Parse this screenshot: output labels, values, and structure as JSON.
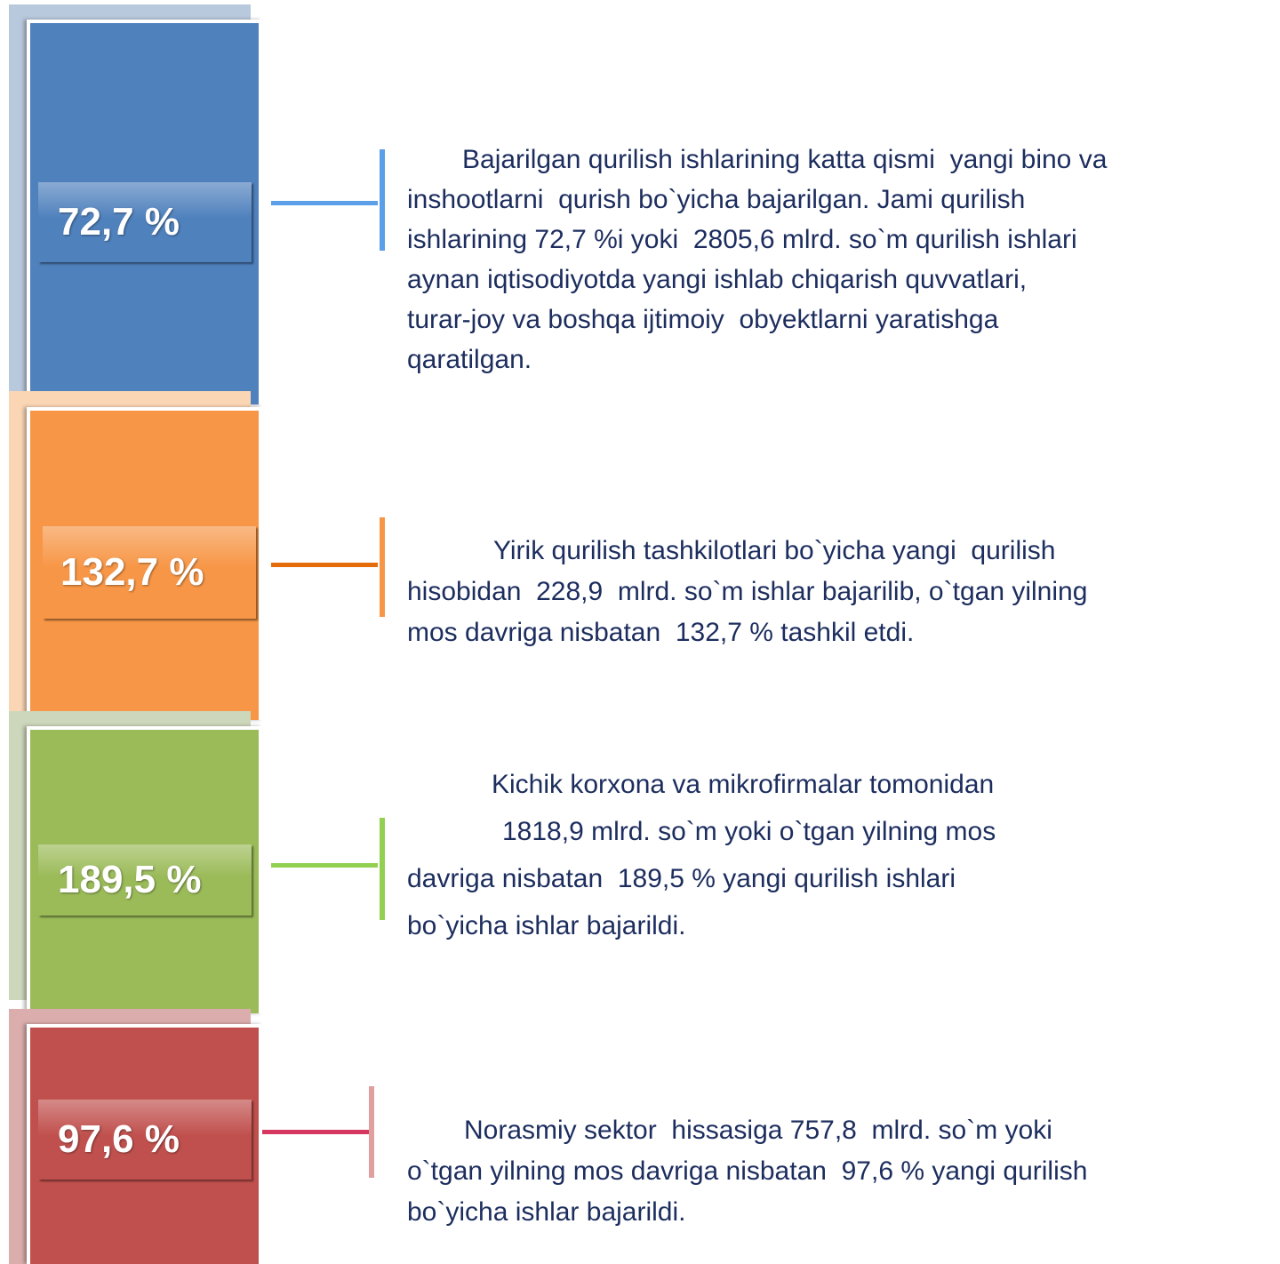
{
  "items": [
    {
      "label": "72,7 %",
      "lines": [
        "Bajarilgan qurilish ishlarining katta qismi  yangi bino va",
        "inshootlarni  qurish bo`yicha bajarilgan. Jami qurilish",
        "ishlarining 72,7 %i yoki  2805,6 mlrd. so`m qurilish ishlari",
        "aynan iqtisodiyotda yangi ishlab chiqarish quvvatlari,",
        "turar-joy va boshqa ijtimoiy  obyektlarni yaratishga",
        "qaratilgan."
      ]
    },
    {
      "label": "132,7 %",
      "lines": [
        "Yirik qurilish tashkilotlari bo`yicha yangi  qurilish",
        "hisobidan  228,9  mlrd. so`m ishlar bajarilib, o`tgan yilning",
        "mos davriga nisbatan  132,7 % tashkil etdi."
      ]
    },
    {
      "label": "189,5 %",
      "lines": [
        "Kichik korxona va mikrofirmalar tomonidan",
        "1818,9 mlrd. so`m yoki o`tgan yilning mos",
        "davriga nisbatan  189,5 % yangi qurilish ishlari",
        "bo`yicha ishlar bajarildi."
      ]
    },
    {
      "label": "97,6 %",
      "lines": [
        "Norasmiy sektor  hissasiga 757,8  mlrd. so`m yoki",
        "o`tgan yilning mos davriga nisbatan  97,6 % yangi qurilish",
        "bo`yicha ishlar bajarildi."
      ]
    }
  ]
}
